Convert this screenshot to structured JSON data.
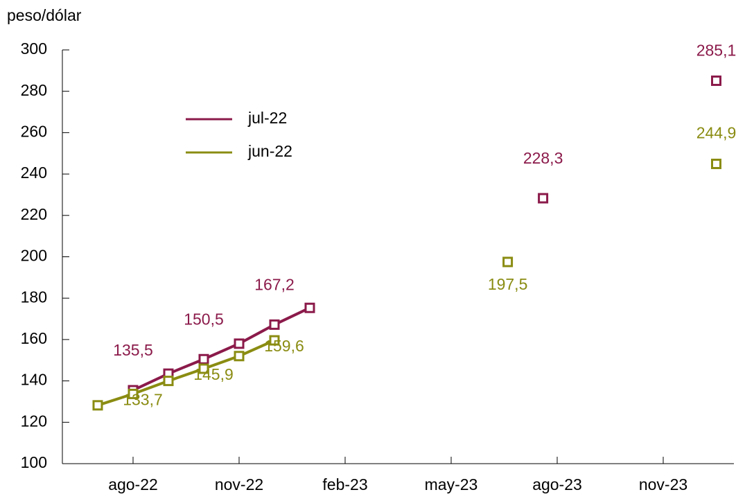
{
  "chart_data": {
    "type": "line",
    "subtitle": "peso/dólar",
    "ylim": [
      100,
      300
    ],
    "yticks": [
      100,
      120,
      140,
      160,
      180,
      200,
      220,
      240,
      260,
      280,
      300
    ],
    "xlim": [
      5,
      24
    ],
    "xticks": [
      {
        "value": 7,
        "label": "ago-22"
      },
      {
        "value": 10,
        "label": "nov-22"
      },
      {
        "value": 13,
        "label": "feb-23"
      },
      {
        "value": 16,
        "label": "may-23"
      },
      {
        "value": 19,
        "label": "ago-23"
      },
      {
        "value": 22,
        "label": "nov-23"
      }
    ],
    "series": [
      {
        "name": "jul-22",
        "color": "#8b1a4a",
        "x": [
          7,
          8,
          9,
          10,
          11,
          12,
          null,
          18.6,
          null,
          23.5
        ],
        "values": [
          135.5,
          143.5,
          150.5,
          158,
          167.2,
          175.3,
          null,
          228.3,
          null,
          285.1
        ],
        "value_labels": [
          "135,5",
          null,
          "150,5",
          null,
          "167,2",
          null,
          null,
          "228,3",
          null,
          "285,1"
        ]
      },
      {
        "name": "jun-22",
        "color": "#8a8c12",
        "x": [
          6,
          7,
          8,
          9,
          10,
          11,
          null,
          17.6,
          null,
          23.5
        ],
        "values": [
          128.2,
          133.7,
          140,
          145.9,
          152,
          159.6,
          null,
          197.5,
          null,
          244.9
        ],
        "value_labels": [
          null,
          "133,7",
          null,
          "145,9",
          null,
          "159,6",
          null,
          "197,5",
          null,
          "244,9"
        ]
      }
    ]
  }
}
